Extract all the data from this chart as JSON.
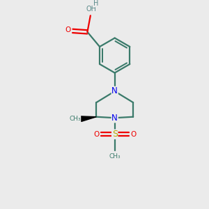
{
  "background_color": "#ebebeb",
  "atom_color_C": "#3a7a6a",
  "atom_color_N": "#0000ee",
  "atom_color_O": "#ee0000",
  "atom_color_S": "#bbaa00",
  "atom_color_H": "#5a8a8a",
  "bond_color": "#3a7a6a",
  "line_width": 1.6,
  "figsize": [
    3.0,
    3.0
  ],
  "dpi": 100,
  "xlim": [
    0,
    10
  ],
  "ylim": [
    0,
    10
  ]
}
